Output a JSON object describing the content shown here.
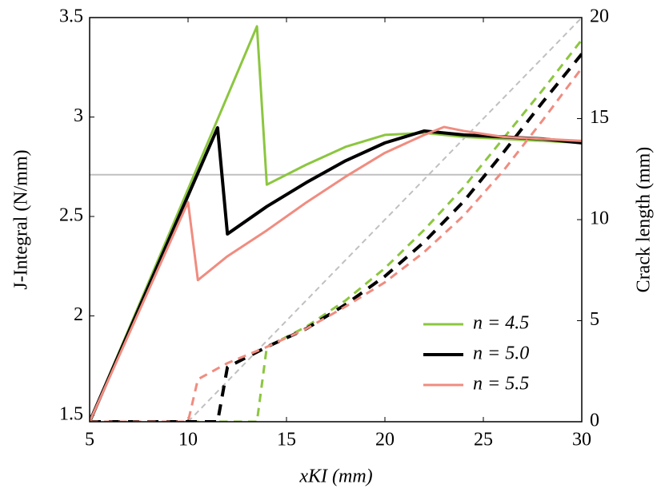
{
  "chart_data": {
    "type": "line",
    "xlabel": "xKI (mm)",
    "ylabel": "J-Integral (N/mm)",
    "y2label": "Crack length (mm)",
    "xlim": [
      5,
      30
    ],
    "xticks": [
      5,
      10,
      15,
      20,
      25,
      30
    ],
    "ylim": [
      1.468,
      3.5
    ],
    "yticks": [
      1.5,
      2,
      2.5,
      3,
      3.5
    ],
    "y2lim": [
      0,
      20
    ],
    "y2ticks": [
      0,
      5,
      10,
      15,
      20
    ],
    "legend": "lower right",
    "series": [
      {
        "color": "#c0c0c0",
        "dash": false,
        "width": 2,
        "x": [
          5,
          30
        ],
        "values": [
          2.71,
          2.71
        ]
      },
      {
        "color": "#c0c0c0",
        "dash": true,
        "width": 2,
        "axis": "y2",
        "x": [
          10,
          30
        ],
        "values": [
          0,
          20
        ]
      },
      {
        "name": "n = 4.5",
        "color": "#8cc63f",
        "dash": false,
        "width": 3,
        "x": [
          5,
          13.5,
          14,
          16,
          18,
          20,
          22,
          24,
          26,
          28,
          30
        ],
        "values": [
          1.468,
          3.456,
          2.66,
          2.76,
          2.85,
          2.91,
          2.92,
          2.9,
          2.89,
          2.88,
          2.87
        ]
      },
      {
        "color": "#8cc63f",
        "dash": true,
        "width": 3,
        "axis": "y2",
        "x": [
          5,
          13.5,
          14,
          16,
          18,
          20,
          22,
          24,
          26,
          28,
          30
        ],
        "values": [
          0,
          0,
          3.7,
          4.7,
          6.0,
          7.6,
          9.5,
          11.6,
          14.0,
          16.4,
          18.9
        ]
      },
      {
        "name": "n = 5.0",
        "color": "#000000",
        "dash": false,
        "width": 4,
        "x": [
          5,
          11.5,
          12,
          14,
          16,
          18,
          20,
          22,
          24,
          26,
          28,
          30
        ],
        "values": [
          1.468,
          2.946,
          2.412,
          2.55,
          2.67,
          2.78,
          2.87,
          2.93,
          2.91,
          2.9,
          2.89,
          2.87
        ]
      },
      {
        "color": "#000000",
        "dash": true,
        "width": 4,
        "axis": "y2",
        "x": [
          5,
          11.5,
          12,
          14,
          16,
          18,
          20,
          22,
          24,
          26,
          28,
          30
        ],
        "values": [
          0,
          0,
          2.7,
          3.7,
          4.6,
          5.8,
          7.2,
          8.9,
          10.9,
          13.3,
          15.8,
          18.2
        ]
      },
      {
        "name": "n = 5.5",
        "color": "#f08c80",
        "dash": false,
        "width": 3,
        "x": [
          5,
          10,
          10.5,
          12,
          14,
          16,
          18,
          20,
          22,
          23,
          24,
          26,
          28,
          30
        ],
        "values": [
          1.468,
          2.572,
          2.18,
          2.3,
          2.43,
          2.57,
          2.7,
          2.82,
          2.91,
          2.95,
          2.93,
          2.9,
          2.89,
          2.88
        ]
      },
      {
        "color": "#f08c80",
        "dash": true,
        "width": 3,
        "axis": "y2",
        "x": [
          5,
          10,
          10.5,
          12,
          14,
          16,
          18,
          20,
          22,
          24,
          26,
          28,
          30
        ],
        "values": [
          0,
          0,
          2.1,
          2.9,
          3.7,
          4.6,
          5.7,
          6.9,
          8.4,
          10.2,
          12.4,
          14.9,
          17.5
        ]
      }
    ]
  }
}
